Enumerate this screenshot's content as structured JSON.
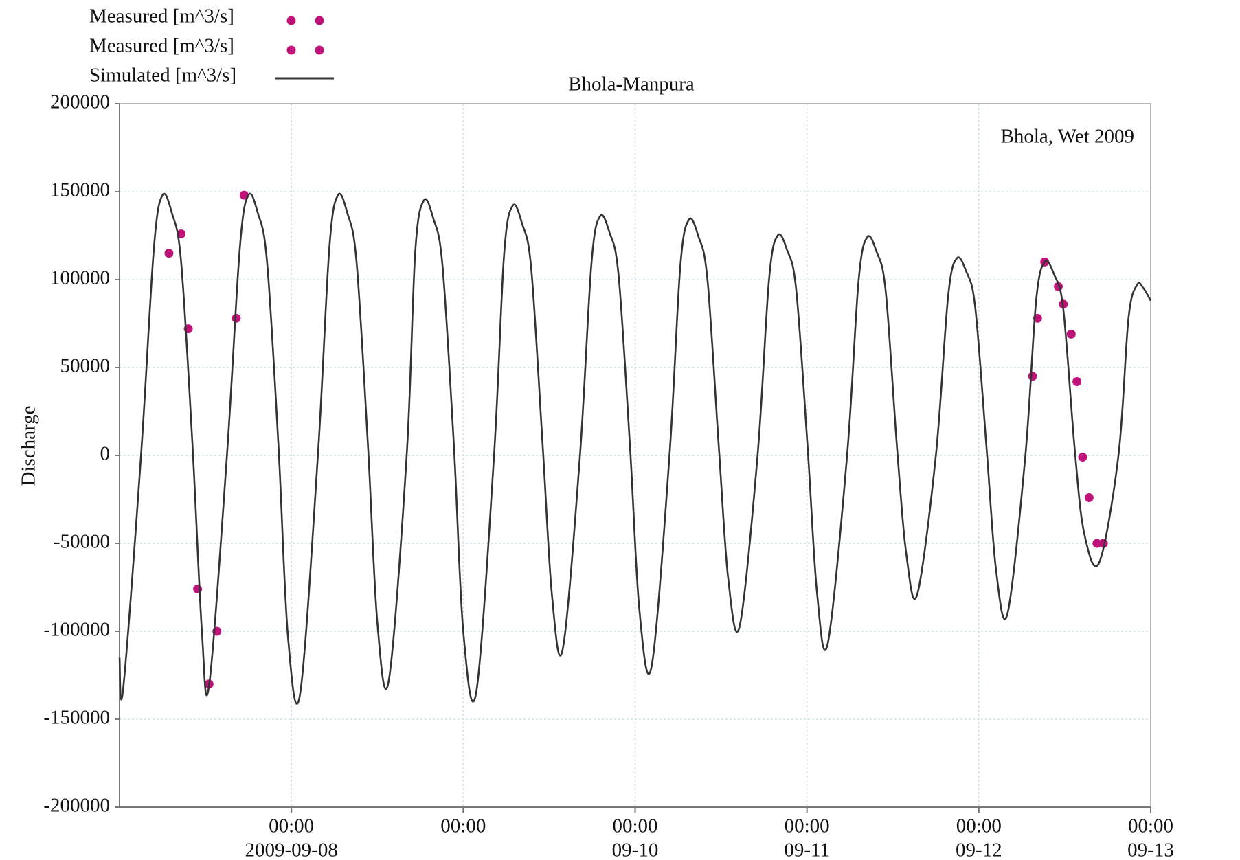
{
  "chart_data": {
    "type": "line",
    "title": "Bhola-Manpura",
    "annotation": "Bhola, Wet 2009",
    "y_label": "Discharge",
    "grid": true,
    "legend": "top-left",
    "xlim": [
      "2009-09-07 00:00",
      "2009-09-13 00:00"
    ],
    "xticks": [
      {
        "value": "2009-09-08 00:00",
        "label": [
          "00:00",
          "2009-09-08"
        ]
      },
      {
        "value": "2009-09-09 00:00",
        "label": [
          "00:00"
        ]
      },
      {
        "value": "2009-09-10 00:00",
        "label": [
          "00:00",
          "09-10"
        ]
      },
      {
        "value": "2009-09-11 00:00",
        "label": [
          "00:00",
          "09-11"
        ]
      },
      {
        "value": "2009-09-12 00:00",
        "label": [
          "00:00",
          "09-12"
        ]
      },
      {
        "value": "2009-09-13 00:00",
        "label": [
          "00:00",
          "09-13"
        ]
      }
    ],
    "ylim": [
      -200000,
      200000
    ],
    "yticks": [
      -200000,
      -150000,
      -100000,
      -50000,
      0,
      50000,
      100000,
      150000,
      200000
    ],
    "series": [
      {
        "name": "Measured [m^3/s]",
        "type": "scatter",
        "color": "#c0137a",
        "x": [
          "2009-09-07 06:54",
          "2009-09-07 08:36",
          "2009-09-07 09:36",
          "2009-09-07 10:54",
          "2009-09-07 12:30",
          "2009-09-07 13:36",
          "2009-09-07 16:18",
          "2009-09-07 17:24"
        ],
        "values": [
          115000,
          126000,
          72000,
          -76000,
          -130000,
          -100000,
          78000,
          148000
        ]
      },
      {
        "name": "Measured [m^3/s]",
        "type": "scatter",
        "color": "#c0137a",
        "x": [
          "2009-09-12 07:30",
          "2009-09-12 08:12",
          "2009-09-12 09:12",
          "2009-09-12 11:06",
          "2009-09-12 11:48",
          "2009-09-12 12:54",
          "2009-09-12 13:42",
          "2009-09-12 14:30",
          "2009-09-12 15:24",
          "2009-09-12 16:30",
          "2009-09-12 17:24"
        ],
        "values": [
          45000,
          78000,
          110000,
          96000,
          86000,
          69000,
          42000,
          -1000,
          -24000,
          -50000,
          -50000
        ]
      },
      {
        "name": "Simulated [m^3/s]",
        "type": "line",
        "color": "#333333",
        "x": [
          "2009-09-07 00:00",
          "2009-09-07 00:30",
          "2009-09-07 03:00",
          "2009-09-07 04:48",
          "2009-09-07 06:00",
          "2009-09-07 07:18",
          "2009-09-07 08:36",
          "2009-09-07 10:12",
          "2009-09-07 11:30",
          "2009-09-07 12:30",
          "2009-09-07 15:00",
          "2009-09-07 16:48",
          "2009-09-07 18:00",
          "2009-09-07 19:18",
          "2009-09-07 20:36",
          "2009-09-07 22:12",
          "2009-09-07 23:30",
          "2009-09-08 01:12",
          "2009-09-08 03:42",
          "2009-09-08 05:18",
          "2009-09-08 06:30",
          "2009-09-08 07:48",
          "2009-09-08 09:06",
          "2009-09-08 10:42",
          "2009-09-08 12:00",
          "2009-09-08 13:36",
          "2009-09-08 16:06",
          "2009-09-08 17:18",
          "2009-09-08 18:30",
          "2009-09-08 19:48",
          "2009-09-08 21:06",
          "2009-09-08 22:42",
          "2009-09-09 00:00",
          "2009-09-09 01:48",
          "2009-09-09 04:18",
          "2009-09-09 05:42",
          "2009-09-09 06:54",
          "2009-09-09 08:12",
          "2009-09-09 09:30",
          "2009-09-09 11:06",
          "2009-09-09 12:24",
          "2009-09-09 13:54",
          "2009-09-09 16:18",
          "2009-09-09 17:54",
          "2009-09-09 19:06",
          "2009-09-09 20:24",
          "2009-09-09 21:42",
          "2009-09-09 23:18",
          "2009-09-10 00:36",
          "2009-09-10 02:18",
          "2009-09-10 04:48",
          "2009-09-10 06:18",
          "2009-09-10 07:30",
          "2009-09-10 08:48",
          "2009-09-10 10:06",
          "2009-09-10 11:42",
          "2009-09-10 13:00",
          "2009-09-10 14:36",
          "2009-09-10 17:06",
          "2009-09-10 18:42",
          "2009-09-10 19:54",
          "2009-09-10 21:12",
          "2009-09-10 22:30",
          "2009-09-11 00:06",
          "2009-09-11 01:24",
          "2009-09-11 02:54",
          "2009-09-11 05:36",
          "2009-09-11 07:12",
          "2009-09-11 08:24",
          "2009-09-11 09:42",
          "2009-09-11 11:00",
          "2009-09-11 12:36",
          "2009-09-11 13:54",
          "2009-09-11 15:24",
          "2009-09-11 18:00",
          "2009-09-11 19:42",
          "2009-09-11 20:54",
          "2009-09-11 22:12",
          "2009-09-11 23:30",
          "2009-09-12 01:06",
          "2009-09-12 02:24",
          "2009-09-12 04:00",
          "2009-09-12 06:30",
          "2009-09-12 08:00",
          "2009-09-12 09:12",
          "2009-09-12 10:30",
          "2009-09-12 11:48",
          "2009-09-12 13:24",
          "2009-09-12 14:42",
          "2009-09-12 16:48",
          "2009-09-12 19:30",
          "2009-09-12 20:54",
          "2009-09-12 22:06",
          "2009-09-12 23:00",
          "2009-09-13 00:00"
        ],
        "values": [
          -115000,
          -133000,
          0,
          118000,
          148000,
          138000,
          110000,
          5000,
          -100000,
          -131000,
          0,
          118000,
          148000,
          138000,
          110000,
          5000,
          -102000,
          -136000,
          0,
          118000,
          148000,
          138000,
          110000,
          5000,
          -95000,
          -128000,
          0,
          116000,
          145000,
          135000,
          108000,
          5000,
          -100000,
          -135000,
          0,
          114000,
          142000,
          132000,
          106000,
          5000,
          -80000,
          -110000,
          0,
          109000,
          136000,
          127000,
          102000,
          4000,
          -88000,
          -120000,
          0,
          107000,
          134000,
          125000,
          100000,
          4000,
          -70000,
          -97000,
          0,
          100000,
          125000,
          117000,
          94000,
          4000,
          -78000,
          -107000,
          0,
          99000,
          124000,
          116000,
          93000,
          3000,
          -57000,
          -79000,
          0,
          90000,
          112000,
          105000,
          84000,
          3000,
          -65000,
          -90000,
          0,
          88000,
          110000,
          103000,
          83000,
          3000,
          -44000,
          -61000,
          0,
          78000,
          97000,
          95000,
          88000
        ]
      }
    ]
  }
}
